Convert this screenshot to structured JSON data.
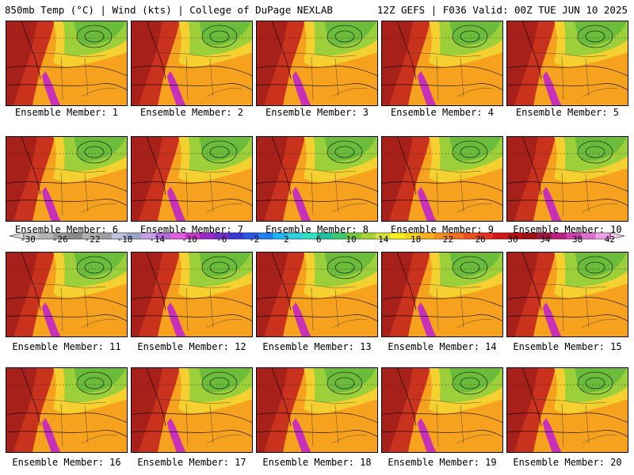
{
  "header": {
    "left_title": "850mb Temp (°C) | Wind (kts) | College of DuPage NEXLAB",
    "right_title": "12Z GEFS | F036 Valid: 00Z TUE JUN 10 2025"
  },
  "panels": [
    {
      "label": "Ensemble Member: 1"
    },
    {
      "label": "Ensemble Member: 2"
    },
    {
      "label": "Ensemble Member: 3"
    },
    {
      "label": "Ensemble Member: 4"
    },
    {
      "label": "Ensemble Member: 5"
    },
    {
      "label": "Ensemble Member: 6"
    },
    {
      "label": "Ensemble Member: 7"
    },
    {
      "label": "Ensemble Member: 8"
    },
    {
      "label": "Ensemble Member: 9"
    },
    {
      "label": "Ensemble Member: 10"
    },
    {
      "label": "Ensemble Member: 11"
    },
    {
      "label": "Ensemble Member: 12"
    },
    {
      "label": "Ensemble Member: 13"
    },
    {
      "label": "Ensemble Member: 14"
    },
    {
      "label": "Ensemble Member: 15"
    },
    {
      "label": "Ensemble Member: 16"
    },
    {
      "label": "Ensemble Member: 17"
    },
    {
      "label": "Ensemble Member: 18"
    },
    {
      "label": "Ensemble Member: 19"
    },
    {
      "label": "Ensemble Member: 20"
    }
  ],
  "colorbar": {
    "ticks": [
      "-30",
      "-26",
      "-22",
      "-18",
      "-14",
      "-10",
      "-6",
      "-2",
      "2",
      "6",
      "10",
      "14",
      "18",
      "22",
      "26",
      "30",
      "34",
      "38",
      "42"
    ],
    "colors": [
      "#c8c8c8",
      "#b4b4b4",
      "#9a9a9a",
      "#8a8a8a",
      "#b0b0b0",
      "#a0a0a0",
      "#c0c0e0",
      "#9aa6c8",
      "#c6a0e6",
      "#b06ad8",
      "#e060e0",
      "#c838c8",
      "#9a28c8",
      "#7030c8",
      "#3838d0",
      "#2a56e0",
      "#2080f0",
      "#20b4f0",
      "#30d0e0",
      "#30e0c0",
      "#20c0a0",
      "#40c870",
      "#78c840",
      "#a8d038",
      "#d8e040",
      "#f6f020",
      "#f8d020",
      "#f8b020",
      "#f89020",
      "#f07020",
      "#e85020",
      "#e03020",
      "#d01818",
      "#b81010",
      "#981010",
      "#a01840",
      "#b82080",
      "#d040b0",
      "#e070d0",
      "#f0a0e8"
    ]
  }
}
